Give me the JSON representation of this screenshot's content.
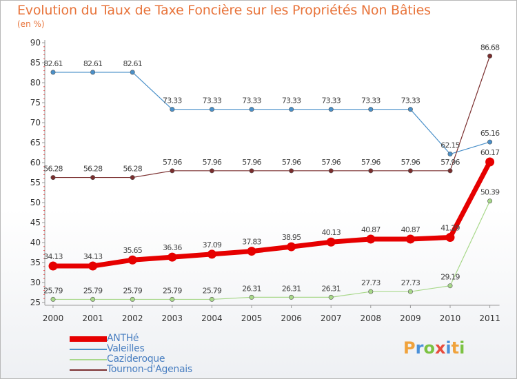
{
  "header": {
    "title": "Evolution du Taux de Taxe Foncière sur les Propriétés Non Bâties",
    "unit": "(en %)"
  },
  "logo": {
    "letters": [
      "P",
      "r",
      "o",
      "x",
      "i",
      "t",
      "i"
    ],
    "colors": [
      "#f0a23c",
      "#4a90d9",
      "#7cc242",
      "#e84c3d",
      "#4a90d9",
      "#f0a23c",
      "#7cc242"
    ]
  },
  "colors": {
    "axis": "#9a9a9a",
    "tick_label": "#333333",
    "data_label": "#444444"
  },
  "chart_data": {
    "type": "line",
    "title": "Evolution du Taux de Taxe Foncière sur les Propriétés Non Bâties",
    "ylabel": "(en %)",
    "xlabel": "",
    "x": [
      "2000",
      "2001",
      "2002",
      "2003",
      "2004",
      "2005",
      "2006",
      "2007",
      "2008",
      "2009",
      "2010",
      "2011"
    ],
    "ylim": [
      25,
      90
    ],
    "yticks": [
      25,
      30,
      35,
      40,
      45,
      50,
      55,
      60,
      65,
      70,
      75,
      80,
      85,
      90
    ],
    "grid": false,
    "legend_position": "bottom-left",
    "series": [
      {
        "name": "Valeilles",
        "color": "#4a90c9",
        "values": [
          82.61,
          82.61,
          82.61,
          73.33,
          73.33,
          73.33,
          73.33,
          73.33,
          73.33,
          73.33,
          62.15,
          65.16
        ],
        "labels": [
          "82.61",
          "82.61",
          "82.61",
          "73.33",
          "73.33",
          "73.33",
          "73.33",
          "73.33",
          "73.33",
          "73.33",
          "62.15",
          "65.16"
        ]
      },
      {
        "name": "Tournon-d'Agenais",
        "color": "#7a2e2e",
        "values": [
          56.28,
          56.28,
          56.28,
          57.96,
          57.96,
          57.96,
          57.96,
          57.96,
          57.96,
          57.96,
          57.96,
          86.68
        ],
        "labels": [
          "56.28",
          "56.28",
          "56.28",
          "57.96",
          "57.96",
          "57.96",
          "57.96",
          "57.96",
          "57.96",
          "57.96",
          "57.96",
          "86.68"
        ]
      },
      {
        "name": "Cazideroque",
        "color": "#a8d88a",
        "values": [
          25.79,
          25.79,
          25.79,
          25.79,
          25.79,
          26.31,
          26.31,
          26.31,
          27.73,
          27.73,
          29.19,
          50.39
        ],
        "labels": [
          "25.79",
          "25.79",
          "25.79",
          "25.79",
          "25.79",
          "26.31",
          "26.31",
          "26.31",
          "27.73",
          "27.73",
          "29.19",
          "50.39"
        ]
      },
      {
        "name": "ANTHé",
        "color": "#e60000",
        "values": [
          34.13,
          34.13,
          35.65,
          36.36,
          37.09,
          37.83,
          38.95,
          40.13,
          40.87,
          40.87,
          41.29,
          60.17
        ],
        "labels": [
          "34.13",
          "34.13",
          "35.65",
          "36.36",
          "37.09",
          "37.83",
          "38.95",
          "40.13",
          "40.87",
          "40.87",
          "41.29",
          "60.17"
        ]
      }
    ],
    "legend": [
      "ANTHé",
      "Valeilles",
      "Cazideroque",
      "Tournon-d'Agenais"
    ]
  }
}
